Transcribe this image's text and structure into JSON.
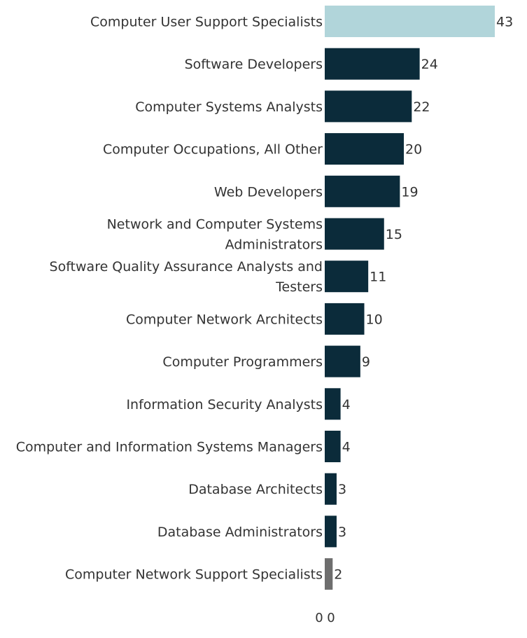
{
  "chart_data": {
    "type": "bar",
    "orientation": "horizontal",
    "categories": [
      [
        "Computer User Support Specialists"
      ],
      [
        "Software Developers"
      ],
      [
        "Computer Systems Analysts"
      ],
      [
        "Computer Occupations, All Other"
      ],
      [
        "Web Developers"
      ],
      [
        "Network and Computer Systems",
        "Administrators"
      ],
      [
        "Software Quality Assurance Analysts and",
        "Testers"
      ],
      [
        "Computer Network Architects"
      ],
      [
        "Computer Programmers"
      ],
      [
        "Information Security Analysts"
      ],
      [
        "Computer and Information Systems Managers"
      ],
      [
        "Database Architects"
      ],
      [
        "Database Administrators"
      ],
      [
        "Computer Network Support Specialists"
      ]
    ],
    "values": [
      43,
      24,
      22,
      20,
      19,
      15,
      11,
      10,
      9,
      4,
      4,
      3,
      3,
      2
    ],
    "colors": [
      "#b1d5da",
      "#0b2b3a",
      "#0b2b3a",
      "#0b2b3a",
      "#0b2b3a",
      "#0b2b3a",
      "#0b2b3a",
      "#0b2b3a",
      "#0b2b3a",
      "#0b2b3a",
      "#0b2b3a",
      "#0b2b3a",
      "#0b2b3a",
      "#6e6e6e"
    ],
    "x_tick_labels": [
      "0",
      "0"
    ],
    "xlim": [
      0,
      43
    ],
    "grid": false,
    "title": "",
    "xlabel": "",
    "ylabel": ""
  }
}
